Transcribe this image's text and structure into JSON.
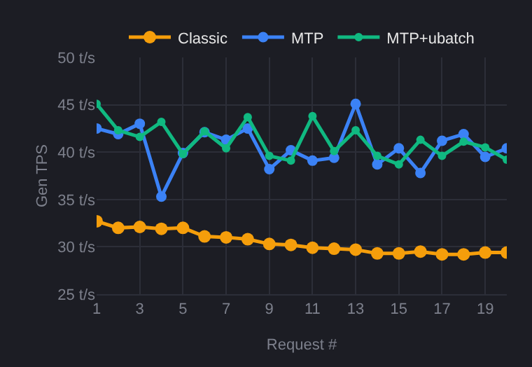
{
  "chart_data": {
    "type": "line",
    "xlabel": "Request #",
    "ylabel": "Gen TPS",
    "x": [
      1,
      2,
      3,
      4,
      5,
      6,
      7,
      8,
      9,
      10,
      11,
      12,
      13,
      14,
      15,
      16,
      17,
      18,
      19,
      20
    ],
    "series": [
      {
        "name": "Classic",
        "color": "#f59e0b",
        "values": [
          32.7,
          32.0,
          32.1,
          31.9,
          32.0,
          31.1,
          31.0,
          30.8,
          30.3,
          30.2,
          29.9,
          29.8,
          29.7,
          29.3,
          29.3,
          29.5,
          29.2,
          29.2,
          29.4,
          29.4
        ]
      },
      {
        "name": "MTP",
        "color": "#3b82f6",
        "values": [
          42.5,
          41.9,
          43.0,
          35.3,
          39.9,
          42.1,
          41.3,
          42.5,
          38.2,
          40.2,
          39.1,
          39.4,
          45.1,
          38.7,
          40.4,
          37.8,
          41.2,
          41.9,
          39.5,
          40.4
        ]
      },
      {
        "name": "MTP+ubatch",
        "color": "#10b981",
        "values": [
          45.1,
          42.3,
          41.6,
          43.2,
          39.8,
          42.2,
          40.4,
          43.7,
          39.6,
          39.1,
          43.8,
          40.1,
          42.3,
          39.6,
          38.7,
          41.3,
          39.6,
          41.1,
          40.5,
          39.2
        ]
      }
    ],
    "xlim": [
      1,
      20
    ],
    "xticks": [
      1,
      3,
      5,
      7,
      9,
      11,
      13,
      15,
      17,
      19
    ],
    "ylim": [
      25,
      50
    ],
    "yticks": [
      {
        "value": 25,
        "label": "25 t/s"
      },
      {
        "value": 30,
        "label": "30 t/s"
      },
      {
        "value": 35,
        "label": "35 t/s"
      },
      {
        "value": 40,
        "label": "40 t/s"
      },
      {
        "value": 45,
        "label": "45 t/s"
      },
      {
        "value": 50,
        "label": "50 t/s"
      }
    ],
    "grid": true,
    "legend": "top",
    "marker": "circle",
    "line_style": "solid"
  }
}
